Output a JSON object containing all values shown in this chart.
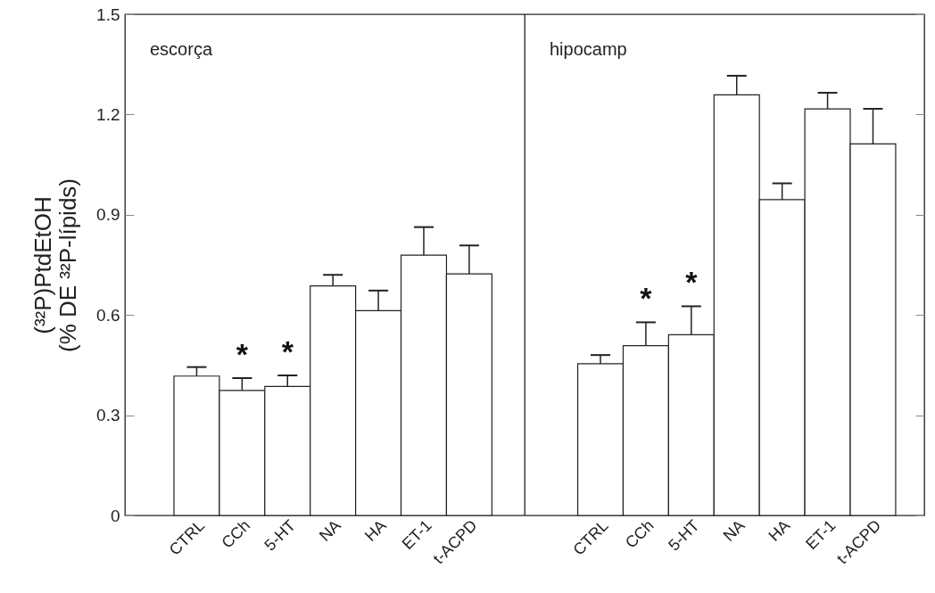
{
  "chart_data": [
    {
      "type": "bar",
      "title": "escorça",
      "ylabel": "(³²P)PtdEtOH\n(% DE ³²P-lípids)",
      "categories": [
        "CTRL",
        "CCh",
        "5-HT",
        "NA",
        "HA",
        "ET-1",
        "t-ACPD"
      ],
      "values": [
        0.417,
        0.374,
        0.386,
        0.687,
        0.613,
        0.779,
        0.723
      ],
      "errors": [
        [
          0.417,
          0.444
        ],
        [
          0.374,
          0.411
        ],
        [
          0.386,
          0.419
        ],
        [
          0.687,
          0.72
        ],
        [
          0.613,
          0.673
        ],
        [
          0.779,
          0.863
        ],
        [
          0.723,
          0.808
        ]
      ],
      "color": "#ffffff",
      "ylim": [
        0,
        1.5
      ],
      "yticks": [
        0,
        0.3,
        0.6,
        0.9,
        1.2,
        1.5
      ],
      "grid": false,
      "annotations": [
        {
          "text": "*",
          "x": "CCh",
          "y": 0.411
        },
        {
          "text": "*",
          "x": "5-HT",
          "y": 0.419
        }
      ]
    },
    {
      "type": "bar",
      "title": "hipocamp",
      "categories": [
        "CTRL",
        "CCh",
        "5-HT",
        "NA",
        "HA",
        "ET-1",
        "t-ACPD"
      ],
      "values": [
        0.454,
        0.508,
        0.541,
        1.259,
        0.945,
        1.217,
        1.112
      ],
      "errors": [
        [
          0.454,
          0.48
        ],
        [
          0.508,
          0.578
        ],
        [
          0.541,
          0.626
        ],
        [
          1.259,
          1.316
        ],
        [
          0.945,
          0.994
        ],
        [
          1.217,
          1.265
        ],
        [
          1.112,
          1.217
        ]
      ],
      "color": "#ffffff",
      "ylim": [
        0,
        1.5
      ],
      "yticks": [
        0,
        0.3,
        0.6,
        0.9,
        1.2,
        1.5
      ],
      "grid": false,
      "tick_labels": "x",
      "annotations": [
        {
          "text": "*",
          "x": "CCh",
          "y": 0.578
        },
        {
          "text": "*",
          "x": "5-HT",
          "y": 0.626
        }
      ]
    }
  ]
}
